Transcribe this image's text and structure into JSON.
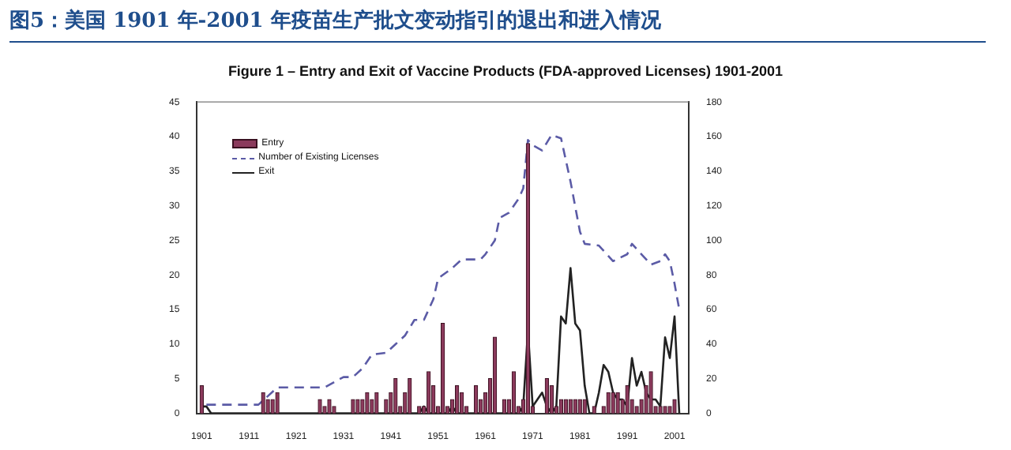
{
  "chart_data": {
    "type": "bar",
    "title": "图5：美国 1901 年-2001 年疫苗生产批文变动指引的退出和进入情况",
    "subtitle": "Figure 1 – Entry and Exit of Vaccine Products (FDA-approved Licenses) 1901-2001",
    "xlim": [
      1900,
      2004
    ],
    "xticks": [
      1901,
      1911,
      1921,
      1931,
      1941,
      1951,
      1961,
      1971,
      1981,
      1991,
      2001
    ],
    "ylim": [
      0,
      45
    ],
    "yticks": [
      0,
      5,
      10,
      15,
      20,
      25,
      30,
      35,
      40,
      45
    ],
    "y2lim": [
      0,
      180
    ],
    "y2ticks": [
      0,
      20,
      40,
      60,
      80,
      100,
      120,
      140,
      160,
      180
    ],
    "grid": false,
    "legend": "top left",
    "series": [
      {
        "name": "Entry",
        "color": "#8b3a5c",
        "x": [
          1901,
          1914,
          1915,
          1916,
          1917,
          1926,
          1927,
          1928,
          1929,
          1933,
          1934,
          1935,
          1936,
          1937,
          1938,
          1940,
          1941,
          1942,
          1943,
          1944,
          1945,
          1947,
          1948,
          1949,
          1950,
          1951,
          1952,
          1953,
          1954,
          1955,
          1956,
          1957,
          1959,
          1960,
          1961,
          1962,
          1963,
          1965,
          1966,
          1967,
          1968,
          1969,
          1970,
          1971,
          1974,
          1975,
          1976,
          1977,
          1978,
          1979,
          1980,
          1981,
          1982,
          1984,
          1986,
          1987,
          1988,
          1989,
          1990,
          1991,
          1992,
          1993,
          1994,
          1995,
          1996,
          1997,
          1998,
          1999,
          2000,
          2001
        ],
        "values": [
          4,
          3,
          2,
          2,
          3,
          2,
          1,
          2,
          1,
          2,
          2,
          2,
          3,
          2,
          3,
          2,
          3,
          5,
          1,
          3,
          5,
          1,
          1,
          6,
          4,
          1,
          13,
          1,
          2,
          4,
          3,
          1,
          4,
          2,
          3,
          5,
          11,
          2,
          2,
          6,
          1,
          2,
          39,
          1,
          5,
          4,
          1,
          2,
          2,
          2,
          2,
          2,
          2,
          1,
          1,
          3,
          3,
          3,
          2,
          4,
          2,
          1,
          2,
          4,
          6,
          1,
          1,
          1,
          1,
          2
        ]
      },
      {
        "name": "Number of Existing Licenses",
        "type": "line",
        "axis": "y2",
        "line_style": "dashed",
        "color": "#5b5ba6",
        "x": [
          1902,
          1913,
          1917,
          1927,
          1929,
          1931,
          1933,
          1935,
          1937,
          1940,
          1942,
          1944,
          1946,
          1948,
          1949,
          1950,
          1951,
          1952,
          1954,
          1956,
          1960,
          1961,
          1963,
          1964,
          1966,
          1968,
          1969,
          1970,
          1971,
          1973,
          1975,
          1977,
          1979,
          1981,
          1982,
          1985,
          1988,
          1991,
          1992,
          1994,
          1996,
          1998,
          1999,
          2000,
          2001,
          2002
        ],
        "values": [
          5,
          5,
          15,
          15,
          18,
          21,
          21,
          26,
          34,
          35,
          40,
          45,
          54,
          54,
          60,
          66,
          78,
          80,
          84,
          89,
          89,
          92,
          100,
          113,
          116,
          124,
          130,
          158,
          155,
          152,
          161,
          159,
          134,
          105,
          98,
          97,
          88,
          92,
          98,
          92,
          86,
          88,
          92,
          88,
          75,
          60
        ]
      },
      {
        "name": "Exit",
        "type": "line",
        "line_style": "solid",
        "color": "#222222",
        "x": [
          1901,
          1902,
          1903,
          1947,
          1948,
          1949,
          1953,
          1954,
          1955,
          1968,
          1969,
          1970,
          1971,
          1972,
          1973,
          1974,
          1975,
          1976,
          1977,
          1978,
          1979,
          1980,
          1981,
          1982,
          1983,
          1984,
          1985,
          1986,
          1987,
          1988,
          1989,
          1990,
          1991,
          1992,
          1993,
          1994,
          1995,
          1996,
          1997,
          1998,
          1999,
          2000,
          2001,
          2002
        ],
        "values": [
          1,
          1,
          0,
          0,
          1,
          0,
          0,
          1,
          0,
          0,
          1,
          12,
          1,
          2,
          3,
          1,
          0,
          1,
          14,
          13,
          21,
          13,
          12,
          4,
          0,
          0,
          3,
          7,
          6,
          3,
          2,
          2,
          1,
          8,
          4,
          6,
          3,
          2,
          2,
          1,
          11,
          8,
          14,
          0
        ]
      }
    ]
  }
}
